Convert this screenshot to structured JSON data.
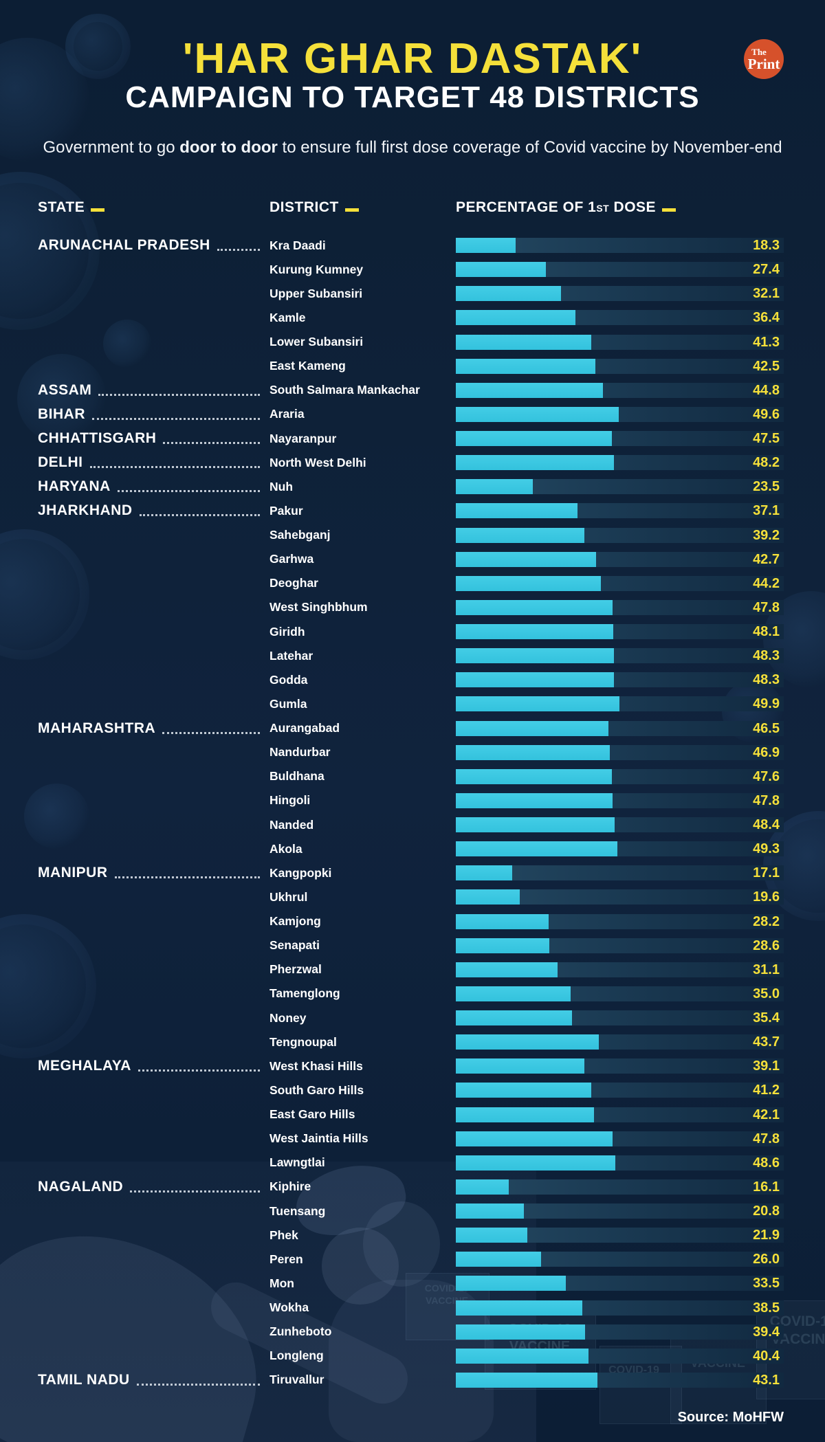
{
  "header": {
    "title": "'HAR GHAR DASTAK'",
    "subtitle": "CAMPAIGN TO TARGET 48 DISTRICTS",
    "description": {
      "prefix": "Government to go ",
      "bold": "door to door",
      "suffix": " to ensure full first dose coverage of Covid vaccine by November-end"
    },
    "logo": {
      "top": "The",
      "bottom": "Print",
      "bg": "#d6512b"
    }
  },
  "columns": {
    "state": "STATE",
    "district": "DISTRICT",
    "percentage_main": "PERCENTAGE OF 1",
    "percentage_small": "ST",
    "percentage_tail": " DOSE"
  },
  "footer": {
    "source": "Source: MoHFW"
  },
  "colors": {
    "background": "#0e2138",
    "bar": "#39c6e0",
    "track_left": "#254962",
    "track_right": "#112940",
    "accent_yellow": "#f5e03a",
    "logo_circle": "#d6512b",
    "text": "#ffffff"
  },
  "background_labels": [
    {
      "text": "COVID-19 VACCINE"
    },
    {
      "text": "COVID-19 VACCINE"
    },
    {
      "text": "COVID-19 VACCINE"
    },
    {
      "text": "VACCINE"
    },
    {
      "text": "COVID-19 VACCINE"
    }
  ],
  "chart_data": {
    "type": "bar",
    "title": "'HAR GHAR DASTAK' CAMPAIGN TO TARGET 48 DISTRICTS",
    "subtitle": "Government to go door to door to ensure full first dose coverage of Covid vaccine by November-end",
    "value_label": "PERCENTAGE OF 1ST DOSE",
    "xlim": [
      0,
      100
    ],
    "orientation": "horizontal",
    "source": "Source: MoHFW",
    "rows": [
      {
        "state": "ARUNACHAL PRADESH",
        "district": "Kra Daadi",
        "value": 18.3
      },
      {
        "state": "",
        "district": "Kurung Kumney",
        "value": 27.4
      },
      {
        "state": "",
        "district": "Upper Subansiri",
        "value": 32.1
      },
      {
        "state": "",
        "district": "Kamle",
        "value": 36.4
      },
      {
        "state": "",
        "district": "Lower Subansiri",
        "value": 41.3
      },
      {
        "state": "",
        "district": "East Kameng",
        "value": 42.5
      },
      {
        "state": "ASSAM",
        "district": "South Salmara Mankachar",
        "value": 44.8
      },
      {
        "state": "BIHAR",
        "district": "Araria",
        "value": 49.6
      },
      {
        "state": "CHHATTISGARH",
        "district": "Nayaranpur",
        "value": 47.5
      },
      {
        "state": "DELHI",
        "district": "North West Delhi",
        "value": 48.2
      },
      {
        "state": "HARYANA",
        "district": "Nuh",
        "value": 23.5
      },
      {
        "state": "JHARKHAND",
        "district": "Pakur",
        "value": 37.1
      },
      {
        "state": "",
        "district": "Sahebganj",
        "value": 39.2
      },
      {
        "state": "",
        "district": "Garhwa",
        "value": 42.7
      },
      {
        "state": "",
        "district": "Deoghar",
        "value": 44.2
      },
      {
        "state": "",
        "district": "West Singhbhum",
        "value": 47.8
      },
      {
        "state": "",
        "district": "Giridh",
        "value": 48.1
      },
      {
        "state": "",
        "district": "Latehar",
        "value": 48.3
      },
      {
        "state": "",
        "district": "Godda",
        "value": 48.3
      },
      {
        "state": "",
        "district": "Gumla",
        "value": 49.9
      },
      {
        "state": "MAHARASHTRA",
        "district": "Aurangabad",
        "value": 46.5
      },
      {
        "state": "",
        "district": "Nandurbar",
        "value": 46.9
      },
      {
        "state": "",
        "district": "Buldhana",
        "value": 47.6
      },
      {
        "state": "",
        "district": "Hingoli",
        "value": 47.8
      },
      {
        "state": "",
        "district": "Nanded",
        "value": 48.4
      },
      {
        "state": "",
        "district": "Akola",
        "value": 49.3
      },
      {
        "state": "MANIPUR",
        "district": "Kangpopki",
        "value": 17.1
      },
      {
        "state": "",
        "district": "Ukhrul",
        "value": 19.6
      },
      {
        "state": "",
        "district": "Kamjong",
        "value": 28.2
      },
      {
        "state": "",
        "district": "Senapati",
        "value": 28.6
      },
      {
        "state": "",
        "district": "Pherzwal",
        "value": 31.1
      },
      {
        "state": "",
        "district": "Tamenglong",
        "value": 35.0
      },
      {
        "state": "",
        "district": "Noney",
        "value": 35.4
      },
      {
        "state": "",
        "district": "Tengnoupal",
        "value": 43.7
      },
      {
        "state": "MEGHALAYA",
        "district": "West Khasi Hills",
        "value": 39.1
      },
      {
        "state": "",
        "district": "South Garo Hills",
        "value": 41.2
      },
      {
        "state": "",
        "district": "East Garo Hills",
        "value": 42.1
      },
      {
        "state": "",
        "district": "West Jaintia Hills",
        "value": 47.8
      },
      {
        "state": "",
        "district": "Lawngtlai",
        "value": 48.6
      },
      {
        "state": "NAGALAND",
        "district": "Kiphire",
        "value": 16.1
      },
      {
        "state": "",
        "district": "Tuensang",
        "value": 20.8
      },
      {
        "state": "",
        "district": "Phek",
        "value": 21.9
      },
      {
        "state": "",
        "district": "Peren",
        "value": 26.0
      },
      {
        "state": "",
        "district": "Mon",
        "value": 33.5
      },
      {
        "state": "",
        "district": "Wokha",
        "value": 38.5
      },
      {
        "state": "",
        "district": "Zunheboto",
        "value": 39.4
      },
      {
        "state": "",
        "district": "Longleng",
        "value": 40.4
      },
      {
        "state": "TAMIL NADU",
        "district": "Tiruvallur",
        "value": 43.1
      }
    ]
  }
}
